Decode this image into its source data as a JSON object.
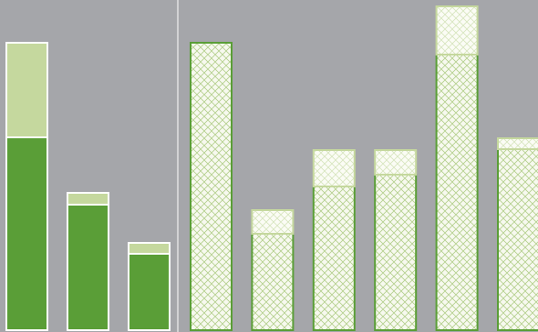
{
  "chart_data": [
    {
      "type": "bar",
      "stacked": true,
      "hatched": false,
      "categories": [
        null,
        null,
        null
      ],
      "ylim": [
        0,
        363
      ],
      "series": [
        {
          "color": "#5a9e37",
          "values": [
            212,
            138,
            84
          ]
        },
        {
          "color": "#c5d89e",
          "values": [
            104,
            13,
            12
          ]
        }
      ]
    },
    {
      "type": "bar",
      "stacked": true,
      "hatched": true,
      "categories": [
        null,
        null,
        null,
        null,
        null,
        null
      ],
      "ylim": [
        0,
        363
      ],
      "series": [
        {
          "color": "#5a9e37",
          "values": [
            316,
            106,
            158,
            171,
            303,
            199
          ]
        },
        {
          "color": "#c5d89e",
          "values": [
            0,
            26,
            40,
            27,
            53,
            12
          ]
        }
      ]
    }
  ]
}
